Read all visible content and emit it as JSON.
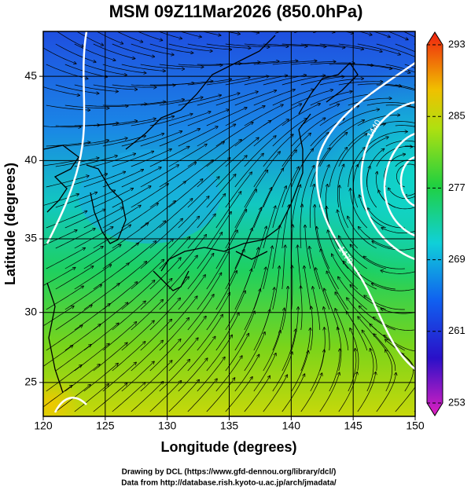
{
  "chart_data": {
    "type": "map",
    "title": "MSM 09Z11Mar2026 (850.0hPa)",
    "x_label": "Longitude (degrees)",
    "y_label": "Latitude  (degrees)",
    "xlim": [
      120,
      150
    ],
    "ylim": [
      22.5,
      47.5
    ],
    "xticks": [
      120,
      125,
      130,
      135,
      140,
      145,
      150
    ],
    "yticks": [
      25,
      30,
      35,
      40,
      45
    ],
    "projection": "mercator",
    "grid": true,
    "colorbar": {
      "lim": [
        253,
        293
      ],
      "ticks": [
        253,
        261,
        269,
        277,
        285,
        293
      ]
    },
    "contour_labels": [
      "1440",
      "1470"
    ],
    "credits": [
      "Drawing by DCL (https://www.gfd-dennou.org/library/dcl/)",
      "Data from http://database.rish.kyoto-u.ac.jp/arch/jmadata/"
    ]
  }
}
